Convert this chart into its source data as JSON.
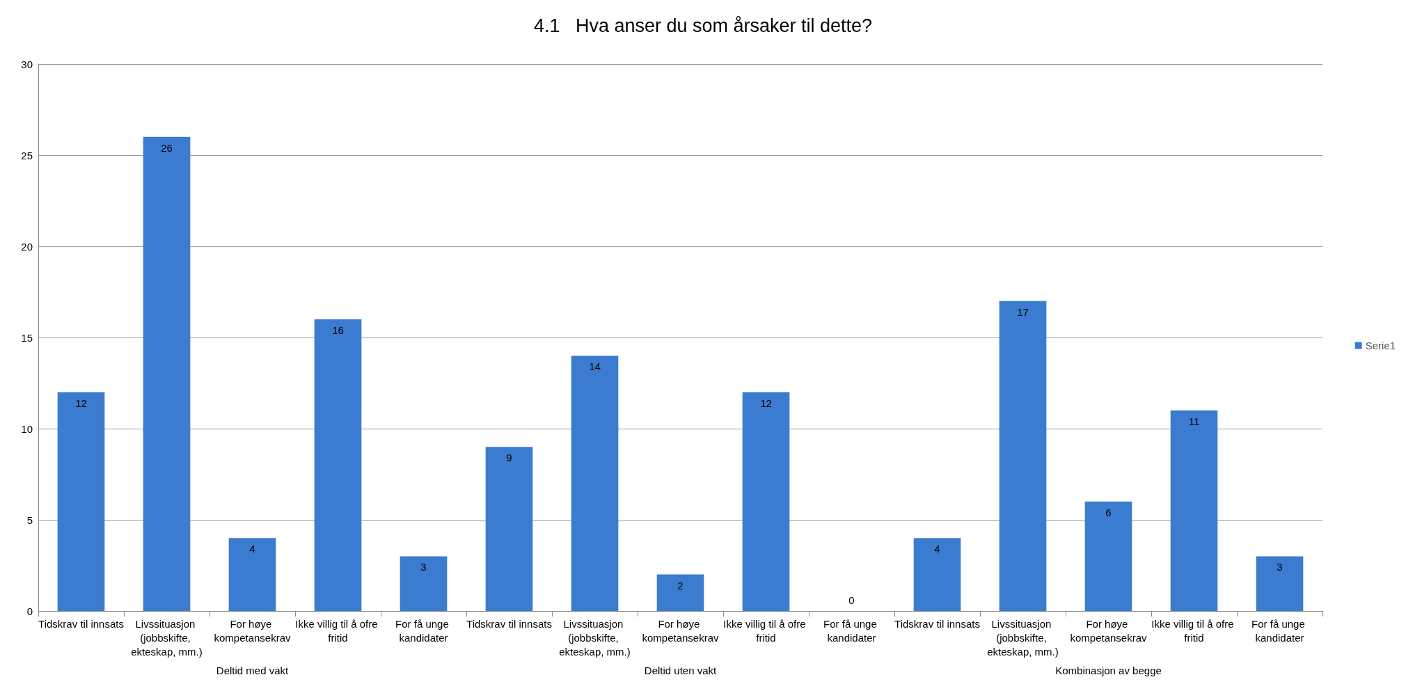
{
  "chart_data": {
    "type": "bar",
    "title": "4.1   Hva anser du som årsaker til dette?",
    "categories": [
      "Tidskrav til innsats",
      "Livssituasjon (jobbskifte, ekteskap, mm.)",
      "For høye kompetansekrav",
      "Ikke villig til å ofre fritid",
      "For få unge kandidater",
      "Tidskrav til innsats",
      "Livssituasjon (jobbskifte, ekteskap, mm.)",
      "For høye kompetansekrav",
      "Ikke villig til å ofre fritid",
      "For få unge kandidater",
      "Tidskrav til innsats",
      "Livssituasjon (jobbskifte, ekteskap, mm.)",
      "For høye kompetansekrav",
      "Ikke villig til å ofre fritid",
      "For få unge kandidater"
    ],
    "series": [
      {
        "name": "Serie1",
        "color": "#3b7bd0",
        "values": [
          12,
          26,
          4,
          16,
          3,
          9,
          14,
          2,
          12,
          0,
          4,
          17,
          6,
          11,
          3
        ]
      }
    ],
    "annotations": [
      "Deltid med vakt",
      "Deltid uten vakt",
      "Kombinasjon av begge"
    ],
    "ylim": [
      0,
      30
    ],
    "yticks": [
      0,
      5,
      10,
      15,
      20,
      25,
      30
    ],
    "grid": "y",
    "legend": "right",
    "data_labels": true
  }
}
